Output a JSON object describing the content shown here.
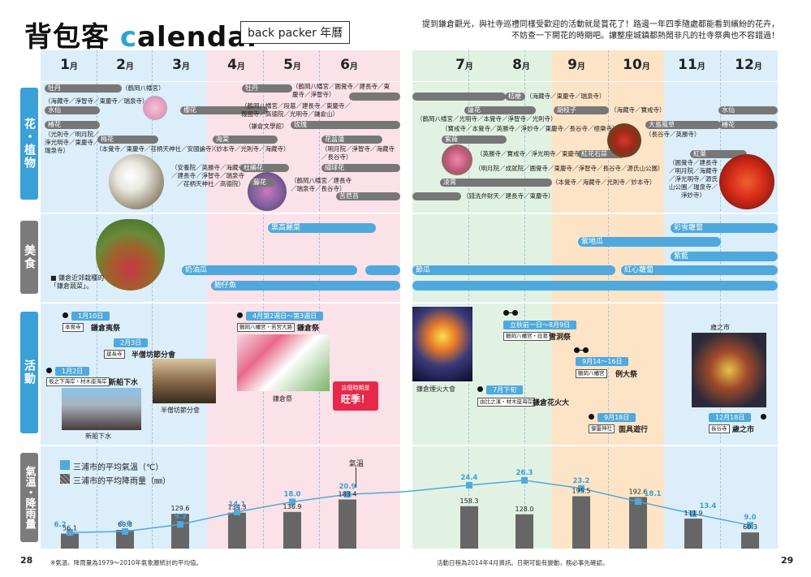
{
  "header": {
    "title_a": "背包客",
    "title_b": "c",
    "title_c": "alendar",
    "subtitle": "back packer 年曆",
    "intro_line1": "提到鎌倉觀光，與社寺巡禮同樣受歡迎的活動就是賞花了！路邊一年四季隨處都能看到繽紛的花卉，",
    "intro_line2": "不妨查一下開花的時期吧。讓整座城鎮都熱鬧非凡的社寺祭典也不容錯過！"
  },
  "months": [
    "1",
    "2",
    "3",
    "4",
    "5",
    "6",
    "7",
    "8",
    "9",
    "10",
    "11",
    "12"
  ],
  "month_suffix": "月",
  "categories": {
    "flowers": "花・植物",
    "food": "美食",
    "events": "活動",
    "climate": "氣溫・降雨量"
  },
  "flowers": {
    "peony1": "牡丹",
    "peony1_place": "（鶴岡八幡宮）",
    "peony2": "牡丹",
    "peony2_place": "（鶴岡八幡宮／圓覺寺／建長寺／東慶寺／淨智寺）",
    "narcissus1_place": "（海藏寺／淨智寺／東慶寺／瑞泉寺）",
    "narcissus1": "水仙",
    "cherry": "櫻花",
    "cherry_place": "（鶴岡八幡宮／段葛／建長寺／東慶寺／報國寺／高德院／光明寺／鎌倉山）",
    "camellia": "椿花",
    "camellia_place": "（光則寺／明月院／淨光明寺／東慶寺／瑞泉寺）",
    "plum": "梅花",
    "plum_place": "（本覺寺／東慶寺／荏柄天神社／安國論寺）",
    "rose": "玫瑰",
    "rose_place": "（鎌倉文學館）",
    "kaido": "海棠",
    "kaido_place": "（妙本寺／光則寺／海藏寺）",
    "iris": "花菖蒲",
    "iris_place": "（明月院／淨智寺／海藏寺／長谷寺）",
    "azalea": "杜鵑花",
    "azalea_place": "（安養院／英勝寺／海藏寺／建長寺／淨智寺／瑞泉寺／荏柄天神社／高德院）",
    "hydrangea": "繡球花",
    "wisteria": "藤花",
    "wisteria_place": "（鶴岡八幡宮／建長寺／瑞泉寺／長谷寺）",
    "bishop": "苦苣苔",
    "bellflower": "桔梗",
    "bellflower_place": "（海藏寺／東慶寺／瑞泉寺）",
    "lotus": "蓮花",
    "lotus_place": "（鶴岡八幡宮／光明寺／本覺寺／淨智寺／光則寺）",
    "lotus_place2": "（寶戒寺／本覺寺／英勝寺／淨妙寺／東慶寺／長谷寺／極樂寺）",
    "crape": "百日紅",
    "crape_place": "（英勝寺／寶戒寺／淨光明寺／東慶寺）",
    "lily": "紅花石蒜",
    "lily_place": "（明月院／成就院／圓覺寺／東慶寺／淨智寺／長谷寺／源氏山公園）",
    "bushclover": "胡枝子",
    "bushclover_place": "（海藏寺／寶戒寺）",
    "trumpet": "凌霄",
    "trumpet_place": "（錢洗弁財天／建長寺／東慶寺）",
    "trumpet_place2": "（本覺寺／海藏寺／光則寺／妙本寺）",
    "cyclamen": "紫薇",
    "narcissus2": "水仙",
    "camellia2": "椿花",
    "wintersweet": "大島風草",
    "wintersweet_place": "（長谷寺／英勝寺）",
    "maple": "紅葉",
    "maple_place": "（圓覺寺／建長寺／明月院／海藏寺／淨光明寺／源氏山公園／瑞泉寺／淨妙寺）"
  },
  "food": {
    "cabbage": "黑高麗菜",
    "zucchini": "節瓜",
    "zucchini2": "奶油瓜",
    "whitebait": "魩仔魚",
    "eggplant": "紫地瓜",
    "carrot": "紅心蘿蔔",
    "purple": "紫藍",
    "turnip": "彩雪蘿蔔",
    "vegetable_note_a": "鎌倉近郊栽種的",
    "vegetable_note_b": "「鎌倉蔬菜」。"
  },
  "events": {
    "e1_date": "1月10日",
    "e1_place": "本覺寺",
    "e1_name": "鎌倉夷祭",
    "e2_date": "2月3日",
    "e2_place": "建長寺",
    "e2_name": "半僧坊節分會",
    "e3_date": "1月2日",
    "e3_place": "坂之下海岸・材木座海岸",
    "e3_name": "新船下水",
    "e3_cap": "新船下水",
    "e2_cap": "半僧坊節分會",
    "e4_date": "4月第2週日～第3週日",
    "e4_place": "鶴岡八幡宮・若宮大路",
    "e4_name": "鎌倉祭",
    "e4_cap": "鎌倉祭",
    "peak_a": "這個時期是",
    "peak_b": "旺季！",
    "e5_date": "立秋前一日～8月9日",
    "e5_place": "鶴岡八幡宮・段葛",
    "e5_name": "雪洞祭",
    "e6_date": "9月14～16日",
    "e6_place": "鶴岡八幡宮",
    "e6_name": "例大祭",
    "e7_date": "7月下旬",
    "e7_place": "由比之濱・材木座海岸",
    "e7_name": "鎌倉花火大",
    "e7_cap": "鎌倉煙火大會",
    "e8_date": "9月18日",
    "e8_place": "御靈神社",
    "e8_name": "面具遊行",
    "e9_date": "12月18日",
    "e9_place": "長谷寺",
    "e9_name": "歲之市",
    "e9_cap": "歲之市"
  },
  "climate": {
    "legend_temp": "三浦市的平均氣溫（℃）",
    "legend_rain": "三浦市的平均降雨量（㎜）",
    "temp_label": "氣溫",
    "rain": [
      "56.1",
      "69.8",
      "129.6",
      "134.3",
      "136.9",
      "183.4",
      "158.3",
      "128.0",
      "195.5",
      "192.6",
      "111.9",
      "60.3"
    ],
    "temp": [
      "6.2",
      "6.6",
      "9.3",
      "14.1",
      "18.0",
      "20.9",
      "24.4",
      "26.3",
      "23.2",
      "18.1",
      "13.4",
      "9.0"
    ]
  },
  "footer": {
    "page_left": "28",
    "page_right": "29",
    "note_left": "※氣溫、降雨量為1979～2010年氣象廳統計的平均值。",
    "note_right": "活動日程為2014年4月資訊。日期可能有變動，務必事先確認。"
  }
}
